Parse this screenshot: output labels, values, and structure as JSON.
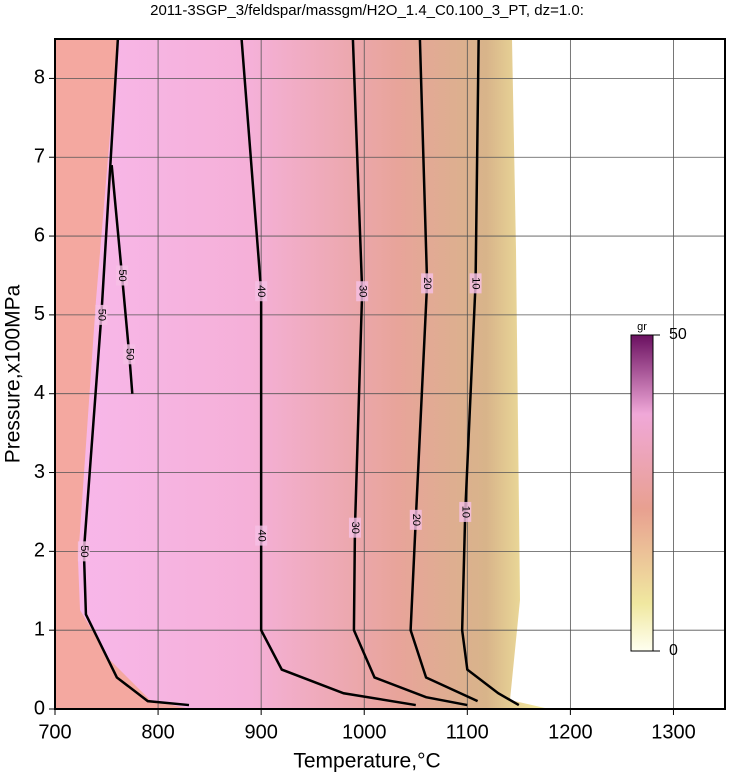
{
  "chart_data": {
    "type": "contour",
    "title": "2011-3SGP_3/feldspar/massgm/H2O_1.4_C0.100_3_PT, dz=1.0:",
    "x_label": "Temperature,°C",
    "y_label": "Pressure,x100MPa",
    "xlim": [
      700,
      1350
    ],
    "ylim": [
      0,
      8.5
    ],
    "xticks": [
      700,
      800,
      900,
      1000,
      1100,
      1200,
      1300
    ],
    "yticks": [
      0,
      1,
      2,
      3,
      4,
      5,
      6,
      7,
      8
    ],
    "grid": true,
    "contours": [
      {
        "level": 10,
        "x": [
          1111,
          1108,
          1098,
          1095,
          1100,
          1130,
          1150
        ],
        "y": [
          8.5,
          5.4,
          2.5,
          1.0,
          0.5,
          0.2,
          0.05
        ]
      },
      {
        "level": 20,
        "x": [
          1054,
          1061,
          1050,
          1045,
          1060,
          1110
        ],
        "y": [
          8.5,
          5.4,
          2.4,
          1.0,
          0.4,
          0.1
        ]
      },
      {
        "level": 30,
        "x": [
          989,
          998,
          991,
          990,
          1010,
          1060,
          1100
        ],
        "y": [
          8.5,
          5.3,
          2.3,
          1.0,
          0.4,
          0.15,
          0.05
        ]
      },
      {
        "level": 40,
        "x": [
          881,
          900,
          900,
          900,
          920,
          980,
          1050
        ],
        "y": [
          8.5,
          5.3,
          2.2,
          1.0,
          0.5,
          0.2,
          0.05
        ]
      },
      {
        "level": 50,
        "x": [
          761,
          745,
          728,
          730,
          745,
          760,
          790,
          830
        ],
        "y": [
          8.5,
          5.0,
          2.0,
          1.2,
          0.8,
          0.4,
          0.1,
          0.05
        ]
      },
      {
        "level": 50,
        "x": [
          755,
          765,
          772,
          775
        ],
        "y": [
          6.9,
          5.5,
          4.5,
          4.0
        ]
      }
    ],
    "colorbar": {
      "label": "gr",
      "lim": [
        0,
        50
      ],
      "ticks": [
        0,
        50
      ]
    }
  }
}
